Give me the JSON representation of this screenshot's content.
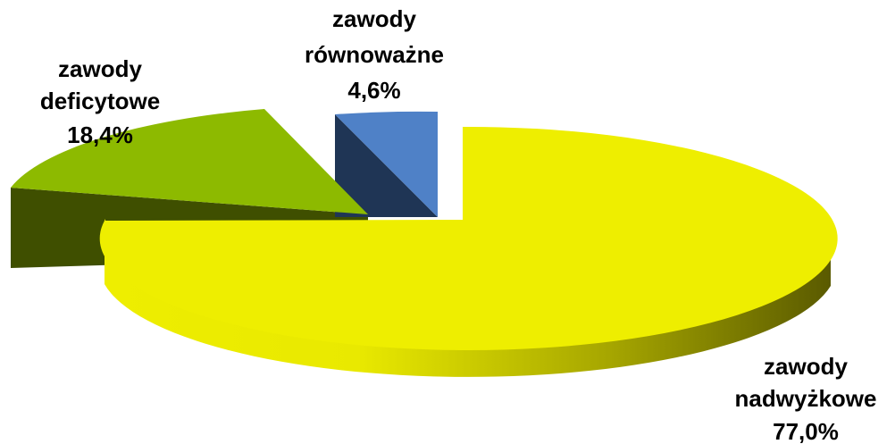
{
  "chart_data": {
    "type": "pie",
    "style": "3d-exploded",
    "slices": [
      {
        "label_lines": [
          "zawody",
          "nadwyżkowe"
        ],
        "value_label": "77,0%",
        "value": 77.0,
        "color": "#EEEE00",
        "side_color": "#5A5A00"
      },
      {
        "label_lines": [
          "zawody",
          "deficytowe"
        ],
        "value_label": "18,4%",
        "value": 18.4,
        "color": "#8DBA00",
        "side_color": "#3F4F00"
      },
      {
        "label_lines": [
          "zawody",
          "równoważne"
        ],
        "value_label": "4,6%",
        "value": 4.6,
        "color": "#4F81C7",
        "side_color": "#1F3555"
      }
    ]
  }
}
